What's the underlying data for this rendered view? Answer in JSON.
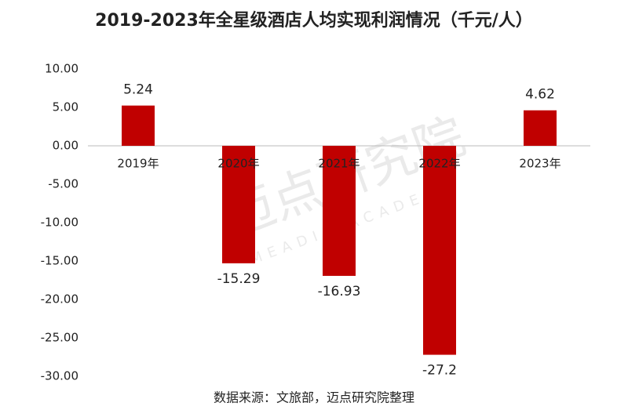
{
  "chart_data": {
    "type": "bar",
    "title": "2019-2023年全星级酒店人均实现利润情况（千元/人）",
    "source": "数据来源：文旅部，迈点研究院整理",
    "watermark": [
      "迈点研究院",
      "MEADIN ACADEMY"
    ],
    "categories": [
      "2019年",
      "2020年",
      "2021年",
      "2022年",
      "2023年"
    ],
    "values": [
      5.24,
      -15.29,
      -16.93,
      -27.2,
      4.62
    ],
    "color": "#c00000",
    "ylim": [
      -30,
      10
    ],
    "yticks": [
      {
        "value": 10,
        "label": "10.00"
      },
      {
        "value": 5,
        "label": "5.00"
      },
      {
        "value": 0,
        "label": "0.00"
      },
      {
        "value": -5,
        "label": "-5.00"
      },
      {
        "value": -10,
        "label": "-10.00"
      },
      {
        "value": -15,
        "label": "-15.00"
      },
      {
        "value": -20,
        "label": "-20.00"
      },
      {
        "value": -25,
        "label": "-25.00"
      },
      {
        "value": -30,
        "label": "-30.00"
      }
    ],
    "grid": false
  }
}
